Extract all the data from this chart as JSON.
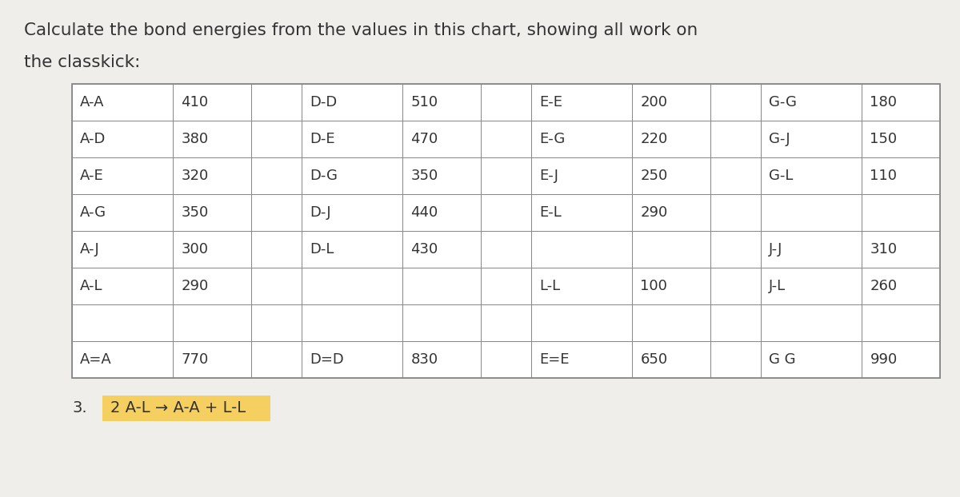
{
  "title_line1": "Calculate the bond energies from the values in this chart, showing all work on",
  "title_line2": "the classkick:",
  "background_color": "#f0eeeb",
  "table_bg": "#ffffff",
  "border_color": "#888888",
  "text_color": "#333333",
  "title_fontsize": 15.5,
  "cell_fontsize": 13,
  "rows": [
    [
      "A-A",
      "410",
      "",
      "D-D",
      "510",
      "",
      "E-E",
      "200",
      "",
      "G-G",
      "180"
    ],
    [
      "A-D",
      "380",
      "",
      "D-E",
      "470",
      "",
      "E-G",
      "220",
      "",
      "G-J",
      "150"
    ],
    [
      "A-E",
      "320",
      "",
      "D-G",
      "350",
      "",
      "E-J",
      "250",
      "",
      "G-L",
      "110"
    ],
    [
      "A-G",
      "350",
      "",
      "D-J",
      "440",
      "",
      "E-L",
      "290",
      "",
      "",
      ""
    ],
    [
      "A-J",
      "300",
      "",
      "D-L",
      "430",
      "",
      "",
      "",
      "",
      "J-J",
      "310"
    ],
    [
      "A-L",
      "290",
      "",
      "",
      "",
      "",
      "L-L",
      "100",
      "",
      "J-L",
      "260"
    ],
    [
      "",
      "",
      "",
      "",
      "",
      "",
      "",
      "",
      "",
      "",
      ""
    ],
    [
      "A=A",
      "770",
      "",
      "D=D",
      "830",
      "",
      "E=E",
      "650",
      "",
      "G G",
      "990"
    ]
  ],
  "highlight_text": "2 A-L → A-A + L-L",
  "highlight_bg": "#f5d060",
  "highlight_label": "3.",
  "label3_fontsize": 14
}
